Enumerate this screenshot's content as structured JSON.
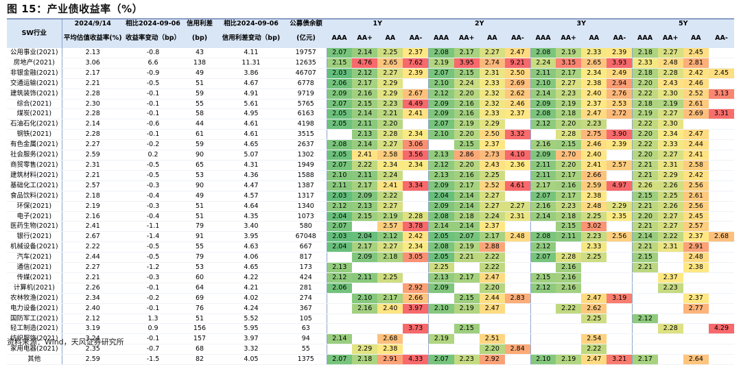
{
  "title": "图 15：产业债收益率（%）",
  "source": "资料来源：Wind，天风证券研究所",
  "colors": {
    "header_bg": "#d9e6f6",
    "low": "#63be7b",
    "mid": "#ffeb84",
    "high": "#f8696b"
  },
  "header": {
    "sector_col": "SW行业",
    "col1_top": "2024/9/14",
    "col1_bottom": "平均估值收益率(%)",
    "col2_top": "相比2024-09-06",
    "col2_bottom": "收益率变动（bp）",
    "col3_top": "信用利差",
    "col3_bottom": "(bp)",
    "col4_top": "相比2024-09-06",
    "col4_bottom": "信用利差变动（bp)",
    "col5_top": "公募债余额",
    "col5_bottom": "(亿元)",
    "tenors": [
      "1Y",
      "2Y",
      "3Y",
      "5Y"
    ],
    "ratings": [
      "AAA",
      "AA+",
      "AA",
      "AA-"
    ]
  },
  "rows": [
    {
      "sector": "公用事业(2021)",
      "yield": "2.13",
      "chg": "-0.8",
      "spread": "43",
      "spread_chg": "4.11",
      "bal": "19757",
      "g": [
        [
          "2.07",
          "2.14",
          "2.25",
          "2.37"
        ],
        [
          "2.08",
          "2.17",
          "2.27",
          "2.47"
        ],
        [
          "2.08",
          "2.19",
          "2.33",
          "2.39"
        ],
        [
          "2.18",
          "2.27",
          "2.45",
          ""
        ]
      ]
    },
    {
      "sector": "房地产(2021)",
      "yield": "3.06",
      "chg": "6.6",
      "spread": "138",
      "spread_chg": "11.31",
      "bal": "12635",
      "g": [
        [
          "2.15",
          "4.76",
          "2.65",
          "7.62"
        ],
        [
          "2.19",
          "3.95",
          "2.74",
          "9.21"
        ],
        [
          "2.24",
          "3.15",
          "2.65",
          "3.93"
        ],
        [
          "2.33",
          "2.48",
          "2.81",
          ""
        ]
      ]
    },
    {
      "sector": "非银金融(2021)",
      "yield": "2.17",
      "chg": "-0.9",
      "spread": "49",
      "spread_chg": "3.86",
      "bal": "46707",
      "g": [
        [
          "2.03",
          "2.12",
          "2.27",
          "2.39"
        ],
        [
          "2.07",
          "2.15",
          "2.31",
          "2.50"
        ],
        [
          "2.11",
          "2.17",
          "2.34",
          "2.49"
        ],
        [
          "2.18",
          "2.28",
          "2.42",
          "2.45"
        ]
      ]
    },
    {
      "sector": "交通运输(2021)",
      "yield": "2.21",
      "chg": "-0.5",
      "spread": "51",
      "spread_chg": "4.67",
      "bal": "6778",
      "g": [
        [
          "2.06",
          "2.17",
          "2.29",
          ""
        ],
        [
          "2.10",
          "2.24",
          "2.33",
          "2.69"
        ],
        [
          "2.10",
          "2.27",
          "2.38",
          "2.94"
        ],
        [
          "2.20",
          "2.43",
          "2.46",
          ""
        ]
      ]
    },
    {
      "sector": "建筑装饰(2021)",
      "yield": "2.28",
      "chg": "-0.1",
      "spread": "59",
      "spread_chg": "4.91",
      "bal": "9719",
      "g": [
        [
          "2.09",
          "2.16",
          "2.29",
          "2.67"
        ],
        [
          "2.12",
          "2.20",
          "2.32",
          "2.62"
        ],
        [
          "2.14",
          "2.23",
          "2.40",
          "2.76"
        ],
        [
          "2.22",
          "2.30",
          "2.52",
          "3.13"
        ]
      ]
    },
    {
      "sector": "综合(2021)",
      "yield": "2.30",
      "chg": "-0.1",
      "spread": "55",
      "spread_chg": "5.61",
      "bal": "5765",
      "g": [
        [
          "2.07",
          "2.15",
          "2.23",
          "4.49"
        ],
        [
          "2.09",
          "2.16",
          "2.32",
          "2.46"
        ],
        [
          "2.09",
          "2.19",
          "2.37",
          "2.53"
        ],
        [
          "2.18",
          "2.19",
          "2.61",
          ""
        ]
      ]
    },
    {
      "sector": "煤炭(2021)",
      "yield": "2.28",
      "chg": "-0.1",
      "spread": "58",
      "spread_chg": "4.95",
      "bal": "6163",
      "g": [
        [
          "2.05",
          "2.14",
          "2.21",
          "2.41"
        ],
        [
          "2.09",
          "2.16",
          "2.33",
          "2.37"
        ],
        [
          "2.08",
          "2.18",
          "2.47",
          "2.72"
        ],
        [
          "2.19",
          "2.27",
          "2.69",
          "3.31"
        ]
      ]
    },
    {
      "sector": "石油石化(2021)",
      "yield": "2.14",
      "chg": "-0.6",
      "spread": "44",
      "spread_chg": "4.61",
      "bal": "4198",
      "g": [
        [
          "2.05",
          "2.11",
          "2.20",
          ""
        ],
        [
          "2.07",
          "2.19",
          "2.29",
          ""
        ],
        [
          "2.12",
          "2.20",
          "2.23",
          ""
        ],
        [
          "2.22",
          "2.30",
          "",
          ""
        ]
      ]
    },
    {
      "sector": "钢铁(2021)",
      "yield": "2.28",
      "chg": "-0.1",
      "spread": "61",
      "spread_chg": "4.61",
      "bal": "3515",
      "g": [
        [
          "",
          "2.13",
          "2.28",
          "2.34"
        ],
        [
          "2.10",
          "2.20",
          "2.50",
          "3.32"
        ],
        [
          "",
          "2.28",
          "2.75",
          "3.90"
        ],
        [
          "2.20",
          "2.34",
          "2.47",
          ""
        ]
      ]
    },
    {
      "sector": "有色金属(2021)",
      "yield": "2.27",
      "chg": "-0.2",
      "spread": "59",
      "spread_chg": "4.65",
      "bal": "2637",
      "g": [
        [
          "2.08",
          "2.14",
          "2.27",
          "3.06"
        ],
        [
          "",
          "2.15",
          "2.37",
          ""
        ],
        [
          "2.16",
          "2.15",
          "2.46",
          "2.39"
        ],
        [
          "2.22",
          "2.33",
          "2.44",
          ""
        ]
      ]
    },
    {
      "sector": "社会服务(2021)",
      "yield": "2.59",
      "chg": "0.2",
      "spread": "90",
      "spread_chg": "5.07",
      "bal": "1302",
      "g": [
        [
          "2.05",
          "2.41",
          "2.58",
          "3.56"
        ],
        [
          "2.13",
          "2.86",
          "2.73",
          "4.10"
        ],
        [
          "2.09",
          "2.70",
          "2.40",
          ""
        ],
        [
          "2.20",
          "2.27",
          "2.41",
          ""
        ]
      ]
    },
    {
      "sector": "商贸零售(2021)",
      "yield": "2.31",
      "chg": "-0.5",
      "spread": "65",
      "spread_chg": "4.31",
      "bal": "1949",
      "g": [
        [
          "2.07",
          "2.22",
          "2.34",
          "2.34"
        ],
        [
          "2.12",
          "2.20",
          "2.43",
          "2.36"
        ],
        [
          "2.11",
          "2.20",
          "2.41",
          "2.57"
        ],
        [
          "2.21",
          "2.31",
          "2.58",
          ""
        ]
      ]
    },
    {
      "sector": "建筑材料(2021)",
      "yield": "2.21",
      "chg": "-0.5",
      "spread": "53",
      "spread_chg": "4.36",
      "bal": "1588",
      "g": [
        [
          "2.10",
          "2.11",
          "2.24",
          ""
        ],
        [
          "2.13",
          "2.16",
          "2.25",
          ""
        ],
        [
          "2.11",
          "2.17",
          "2.66",
          ""
        ],
        [
          "2.21",
          "2.29",
          "2.42",
          ""
        ]
      ]
    },
    {
      "sector": "基础化工(2021)",
      "yield": "2.57",
      "chg": "-0.3",
      "spread": "90",
      "spread_chg": "4.47",
      "bal": "1387",
      "g": [
        [
          "2.11",
          "2.17",
          "2.41",
          "3.34"
        ],
        [
          "2.09",
          "2.17",
          "2.52",
          "4.61"
        ],
        [
          "2.17",
          "2.16",
          "2.59",
          "4.97"
        ],
        [
          "2.26",
          "2.26",
          "2.56",
          ""
        ]
      ]
    },
    {
      "sector": "食品饮料(2021)",
      "yield": "2.18",
      "chg": "-0.4",
      "spread": "49",
      "spread_chg": "4.57",
      "bal": "1317",
      "g": [
        [
          "2.03",
          "2.09",
          "2.22",
          ""
        ],
        [
          "2.04",
          "2.14",
          "2.27",
          ""
        ],
        [
          "2.07",
          "2.17",
          "2.38",
          ""
        ],
        [
          "2.15",
          "2.25",
          "2.61",
          ""
        ]
      ]
    },
    {
      "sector": "环保(2021)",
      "yield": "2.19",
      "chg": "-0.3",
      "spread": "51",
      "spread_chg": "4.64",
      "bal": "1340",
      "g": [
        [
          "2.12",
          "2.13",
          "2.27",
          ""
        ],
        [
          "2.09",
          "2.14",
          "2.27",
          "2.27"
        ],
        [
          "2.16",
          "2.23",
          "2.48",
          "2.29"
        ],
        [
          "2.21",
          "2.26",
          "2.56",
          ""
        ]
      ]
    },
    {
      "sector": "电子(2021)",
      "yield": "2.16",
      "chg": "-0.4",
      "spread": "51",
      "spread_chg": "4.35",
      "bal": "1073",
      "g": [
        [
          "2.04",
          "2.15",
          "2.19",
          "2.28"
        ],
        [
          "2.08",
          "2.18",
          "2.24",
          "2.31"
        ],
        [
          "2.14",
          "2.18",
          "2.25",
          "2.35"
        ],
        [
          "2.20",
          "2.27",
          "2.45",
          ""
        ]
      ]
    },
    {
      "sector": "医药生物(2021)",
      "yield": "2.41",
      "chg": "-1.1",
      "spread": "79",
      "spread_chg": "3.40",
      "bal": "580",
      "g": [
        [
          "2.07",
          "",
          "2.57",
          "3.78"
        ],
        [
          "2.14",
          "2.14",
          "2.37",
          ""
        ],
        [
          "",
          "2.15",
          "3.02",
          ""
        ],
        [
          "2.21",
          "2.27",
          "2.57",
          ""
        ]
      ]
    },
    {
      "sector": "银行(2021)",
      "yield": "2.67",
      "chg": "-1.4",
      "spread": "91",
      "spread_chg": "3.95",
      "bal": "67048",
      "g": [
        [
          "2.03",
          "2.04",
          "2.12",
          "2.42"
        ],
        [
          "2.05",
          "2.07",
          "2.17",
          "2.48"
        ],
        [
          "2.08",
          "2.11",
          "2.23",
          "2.56"
        ],
        [
          "2.14",
          "2.22",
          "2.37",
          "2.68"
        ]
      ]
    },
    {
      "sector": "机械设备(2021)",
      "yield": "2.22",
      "chg": "-0.5",
      "spread": "55",
      "spread_chg": "4.63",
      "bal": "667",
      "g": [
        [
          "2.04",
          "2.17",
          "2.27",
          "2.34"
        ],
        [
          "2.08",
          "2.19",
          "2.88",
          ""
        ],
        [
          "2.12",
          "",
          "2.33",
          ""
        ],
        [
          "2.21",
          "2.31",
          "2.91",
          ""
        ]
      ]
    },
    {
      "sector": "汽车(2021)",
      "yield": "2.44",
      "chg": "-0.5",
      "spread": "79",
      "spread_chg": "4.06",
      "bal": "817",
      "g": [
        [
          "",
          "2.09",
          "2.18",
          "3.05"
        ],
        [
          "2.05",
          "2.21",
          "2.22",
          ""
        ],
        [
          "2.07",
          "2.28",
          "2.25",
          ""
        ],
        [
          "2.15",
          "",
          "2.48",
          ""
        ]
      ]
    },
    {
      "sector": "通信(2021)",
      "yield": "2.27",
      "chg": "-1.2",
      "spread": "53",
      "spread_chg": "4.65",
      "bal": "173",
      "g": [
        [
          "2.13",
          "",
          "",
          ""
        ],
        [
          "2.25",
          "",
          "2.22",
          ""
        ],
        [
          "",
          "2.16",
          "",
          ""
        ],
        [
          "2.21",
          "",
          "2.38",
          ""
        ]
      ]
    },
    {
      "sector": "传媒(2021)",
      "yield": "2.21",
      "chg": "-0.3",
      "spread": "60",
      "spread_chg": "4.22",
      "bal": "424",
      "g": [
        [
          "2.12",
          "2.11",
          "2.25",
          ""
        ],
        [
          "2.13",
          "2.17",
          "2.47",
          ""
        ],
        [
          "2.15",
          "2.16",
          "",
          ""
        ],
        [
          "",
          "2.37",
          "",
          ""
        ]
      ]
    },
    {
      "sector": "计算机(2021)",
      "yield": "2.26",
      "chg": "-0.1",
      "spread": "64",
      "spread_chg": "4.21",
      "bal": "281",
      "g": [
        [
          "2.06",
          "",
          "",
          "2.92"
        ],
        [
          "2.09",
          "",
          "2.20",
          ""
        ],
        [
          "2.12",
          "2.16",
          "",
          ""
        ],
        [
          "",
          "2.23",
          "",
          ""
        ]
      ]
    },
    {
      "sector": "农林牧渔(2021)",
      "yield": "2.34",
      "chg": "-0.2",
      "spread": "69",
      "spread_chg": "4.02",
      "bal": "274",
      "g": [
        [
          "",
          "2.10",
          "2.17",
          "2.66"
        ],
        [
          "",
          "2.15",
          "2.44",
          "2.83"
        ],
        [
          "",
          "",
          "2.47",
          "3.19"
        ],
        [
          "",
          "",
          "2.37",
          ""
        ]
      ]
    },
    {
      "sector": "电力设备(2021)",
      "yield": "2.40",
      "chg": "-0.1",
      "spread": "76",
      "spread_chg": "4.24",
      "bal": "367",
      "g": [
        [
          "",
          "2.16",
          "2.40",
          "3.97"
        ],
        [
          "2.10",
          "2.19",
          "2.47",
          ""
        ],
        [
          "",
          "2.22",
          "2.62",
          ""
        ],
        [
          "",
          "",
          "2.77",
          ""
        ]
      ]
    },
    {
      "sector": "国防军工(2021)",
      "yield": "2.12",
      "chg": "1.3",
      "spread": "51",
      "spread_chg": "5.52",
      "bal": "105",
      "g": [
        [
          "",
          "",
          "",
          ""
        ],
        [
          "",
          "",
          "",
          ""
        ],
        [
          "",
          "",
          "2.25",
          ""
        ],
        [
          "2.12",
          "",
          "",
          ""
        ]
      ]
    },
    {
      "sector": "轻工制造(2021)",
      "yield": "3.19",
      "chg": "0.9",
      "spread": "156",
      "spread_chg": "5.95",
      "bal": "63",
      "g": [
        [
          "",
          "",
          "",
          "3.73"
        ],
        [
          "",
          "2.15",
          "",
          ""
        ],
        [
          "",
          "",
          "",
          ""
        ],
        [
          "",
          "2.28",
          "",
          "4.29"
        ]
      ]
    },
    {
      "sector": "纺织服饰(2021)",
      "yield": "3.24",
      "chg": "-0.1",
      "spread": "157",
      "spread_chg": "3.97",
      "bal": "94",
      "g": [
        [
          "2.14",
          "",
          "2.68",
          ""
        ],
        [
          "2.19",
          "",
          "2.51",
          ""
        ],
        [
          "",
          "",
          "2.54",
          ""
        ],
        [
          "",
          "",
          "",
          ""
        ]
      ]
    },
    {
      "sector": "家用电器(2021)",
      "yield": "2.35",
      "chg": "-0.7",
      "spread": "68",
      "spread_chg": "3.32",
      "bal": "55",
      "g": [
        [
          "",
          "2.29",
          "2.38",
          ""
        ],
        [
          "",
          "",
          "2.20",
          "2.84"
        ],
        [
          "",
          "",
          "2.22",
          ""
        ],
        [
          "",
          "",
          "",
          ""
        ]
      ]
    },
    {
      "sector": "其他",
      "yield": "2.59",
      "chg": "-1.5",
      "spread": "82",
      "spread_chg": "4.05",
      "bal": "1375",
      "g": [
        [
          "2.07",
          "2.18",
          "2.91",
          "4.33"
        ],
        [
          "2.07",
          "2.23",
          "2.92",
          ""
        ],
        [
          "2.10",
          "2.19",
          "2.47",
          "3.21"
        ],
        [
          "2.17",
          "",
          "2.64",
          ""
        ]
      ]
    }
  ]
}
